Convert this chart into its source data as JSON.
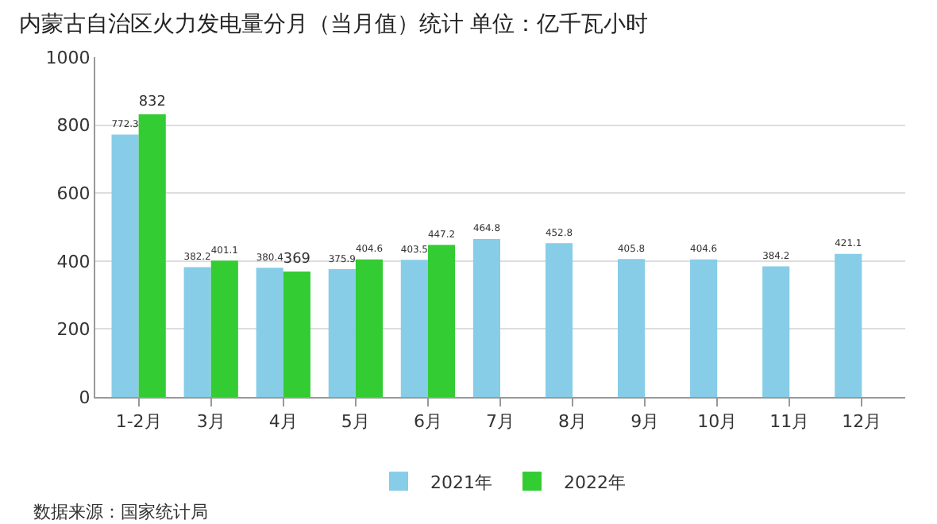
{
  "chart_data": {
    "type": "bar",
    "title": "内蒙古自治区火力发电量分月（当月值）统计 单位：亿千瓦小时",
    "categories": [
      "1-2月",
      "3月",
      "4月",
      "5月",
      "6月",
      "7月",
      "8月",
      "9月",
      "10月",
      "11月",
      "12月"
    ],
    "series": [
      {
        "name": "2021年",
        "color": "#87cde8",
        "values": [
          772.3,
          382.2,
          380.4,
          375.9,
          403.5,
          464.8,
          452.8,
          405.8,
          404.6,
          384.2,
          421.1
        ]
      },
      {
        "name": "2022年",
        "color": "#33cc33",
        "values": [
          832,
          401.1,
          369,
          404.6,
          447.2,
          null,
          null,
          null,
          null,
          null,
          null
        ]
      }
    ],
    "ylim": [
      0,
      1000
    ],
    "yticks": [
      0,
      200,
      400,
      600,
      800,
      1000
    ],
    "grid": "y",
    "legend": "bottom",
    "data_labels": true,
    "annotations": [
      "数据来源：国家统计局"
    ]
  }
}
